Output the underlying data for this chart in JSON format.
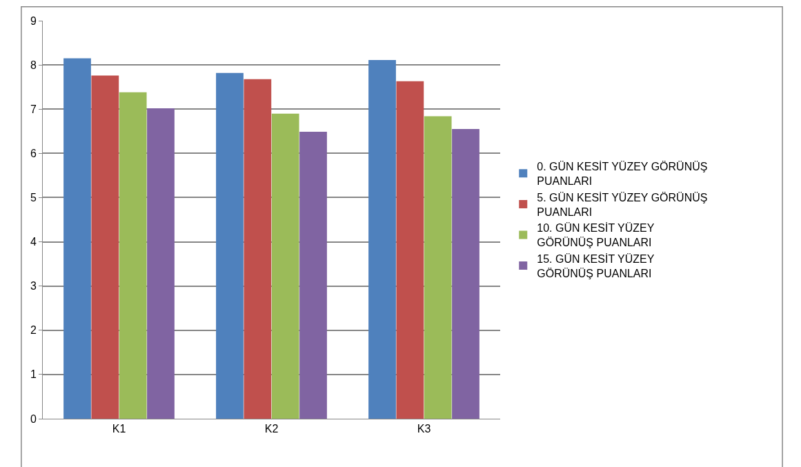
{
  "chart_data": {
    "type": "bar",
    "categories": [
      "K1",
      "K2",
      "K3"
    ],
    "series": [
      {
        "name": "0. GÜN KESİT YÜZEY GÖRÜNÜŞ PUANLARI",
        "color": "#4f81bd",
        "values": [
          8.15,
          7.82,
          8.11
        ]
      },
      {
        "name": "5. GÜN KESİT YÜZEY GÖRÜNÜŞ PUANLARI",
        "color": "#c0504d",
        "values": [
          7.76,
          7.68,
          7.63
        ]
      },
      {
        "name": "10. GÜN KESİT YÜZEY GÖRÜNÜŞ PUANLARI",
        "color": "#9bbb59",
        "values": [
          7.38,
          6.9,
          6.84
        ]
      },
      {
        "name": "15. GÜN KESİT YÜZEY GÖRÜNÜŞ PUANLARI",
        "color": "#8064a2",
        "values": [
          7.02,
          6.49,
          6.55
        ]
      }
    ],
    "ylim": [
      0,
      9
    ],
    "yticks": [
      0,
      1,
      2,
      3,
      4,
      5,
      6,
      7,
      8,
      9
    ],
    "grid": "y",
    "legend": "right"
  }
}
